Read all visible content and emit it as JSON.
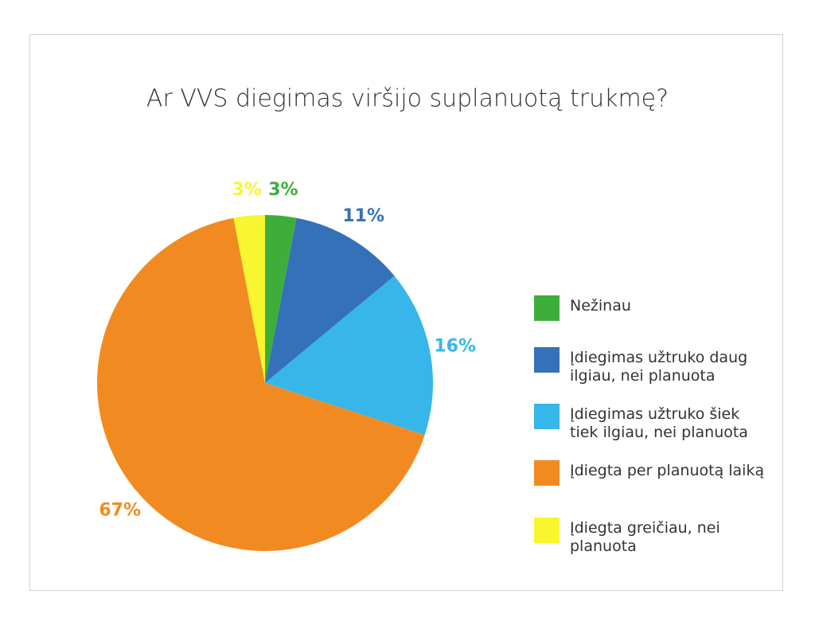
{
  "chart_data": {
    "type": "pie",
    "title": "Ar VVS diegimas viršijo suplanuotą trukmę?",
    "categories": [
      "Nežinau",
      "Įdiegimas užtruko daug ilgiau, nei planuota",
      "Įdiegimas užtruko šiek tiek ilgiau, nei planuota",
      "Įdiegta per planuotą laiką",
      "Įdiegta greičiau, nei planuota"
    ],
    "values": [
      3,
      11,
      16,
      67,
      3
    ],
    "value_labels": [
      "3%",
      "11%",
      "16%",
      "67%",
      "3%"
    ],
    "colors": [
      "#3eae3a",
      "#3571b8",
      "#36b6e9",
      "#f28a22",
      "#f8f62e"
    ],
    "legend": "right"
  }
}
